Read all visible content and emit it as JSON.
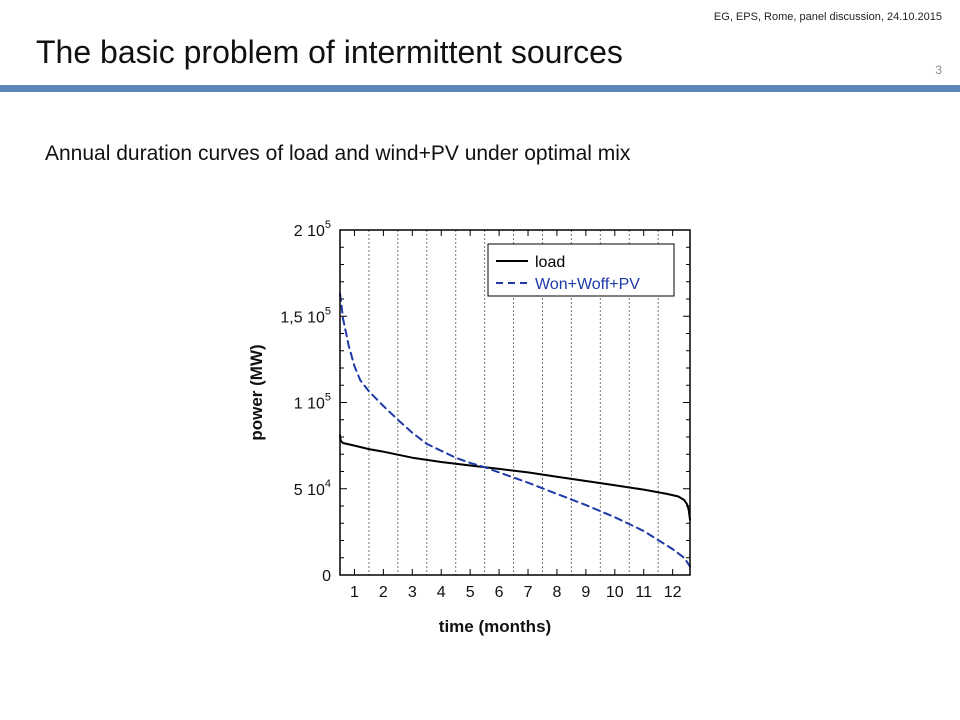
{
  "header": {
    "meta": "EG, EPS, Rome, panel discussion,  24.10.2015",
    "title": "The basic problem of intermittent sources",
    "slide_number": "3",
    "accent_color": "#5b86b7"
  },
  "subtitle": "Annual duration curves of load and wind+PV under optimal mix",
  "chart_data": {
    "type": "line",
    "title": "",
    "xlabel": "time (months)",
    "ylabel": "power (MW)",
    "xlim": [
      0.5,
      12.6
    ],
    "ylim": [
      0,
      200000
    ],
    "x_ticks": [
      "1",
      "2",
      "3",
      "4",
      "5",
      "6",
      "7",
      "8",
      "9",
      "10",
      "11",
      "12"
    ],
    "y_ticks": [
      {
        "value": 0,
        "mantissa": "0",
        "exp": ""
      },
      {
        "value": 50000,
        "mantissa": "5 10",
        "exp": "4"
      },
      {
        "value": 100000,
        "mantissa": "1 10",
        "exp": "5"
      },
      {
        "value": 150000,
        "mantissa": "1,5 10",
        "exp": "5"
      },
      {
        "value": 200000,
        "mantissa": "2 10",
        "exp": "5"
      }
    ],
    "grid": "vertical dashed at month boundaries",
    "legend_position": "top-right",
    "series": [
      {
        "name": "load",
        "color": "#000000",
        "style": "solid",
        "x": [
          0.5,
          0.52,
          0.6,
          1.0,
          1.5,
          2.0,
          3.0,
          4.0,
          5.0,
          6.0,
          7.0,
          8.0,
          9.0,
          10.0,
          11.0,
          11.8,
          12.2,
          12.4,
          12.5,
          12.55,
          12.6
        ],
        "y": [
          81000,
          78000,
          76500,
          75000,
          73000,
          71500,
          68000,
          65500,
          63500,
          61500,
          59500,
          57000,
          54500,
          52000,
          49500,
          47000,
          45500,
          43500,
          41000,
          38000,
          32000
        ]
      },
      {
        "name": "Won+Woff+PV",
        "color": "#1f3aa8",
        "style": "dashed",
        "x": [
          0.5,
          0.55,
          0.6,
          0.7,
          0.8,
          1.0,
          1.2,
          1.5,
          2.0,
          2.5,
          3.0,
          3.5,
          4.0,
          4.5,
          5.0,
          5.5,
          6.0,
          7.0,
          8.0,
          9.0,
          10.0,
          11.0,
          12.0,
          12.4,
          12.6
        ],
        "y": [
          163000,
          157000,
          149000,
          141000,
          133000,
          121000,
          113000,
          106500,
          98000,
          90000,
          82500,
          76000,
          72000,
          68000,
          65000,
          62500,
          59500,
          53500,
          47000,
          40500,
          33500,
          25500,
          15000,
          10000,
          5000
        ]
      }
    ]
  }
}
